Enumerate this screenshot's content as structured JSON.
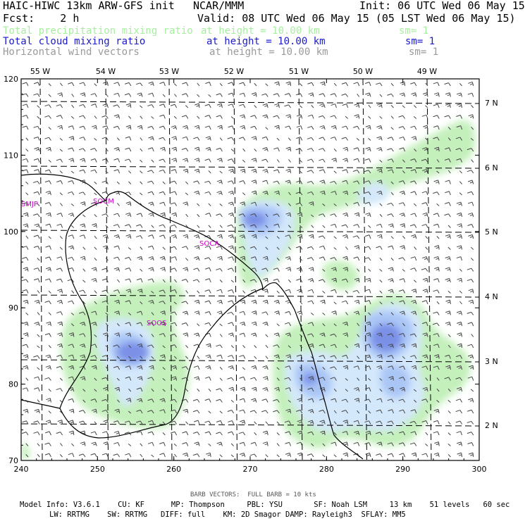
{
  "header": {
    "title": "HAIC-HIWC 13km ARW-GFS init",
    "center": "NCAR/MMM",
    "init": "Init: 06 UTC Wed 06 May 15",
    "fcst": "Fcst:    2 h",
    "valid": "Valid: 08 UTC Wed 06 May 15 (05 LST Wed 06 May 15)"
  },
  "fields": [
    {
      "name": "Total precipitation mixing ratio",
      "height": "at height = 10.00 km",
      "sm": "sm= 1",
      "color": "#a8eea0"
    },
    {
      "name": "Total cloud mixing ratio",
      "height": "at height = 10.00 km",
      "sm": "sm= 1",
      "color": "#1a1acc"
    },
    {
      "name": "Horizontal wind vectors",
      "height": "at height = 10.00 km",
      "sm": "sm= 1",
      "color": "#9a9a9a"
    }
  ],
  "axes": {
    "x_ticks": [
      "240",
      "250",
      "260",
      "270",
      "280",
      "290",
      "300"
    ],
    "y_ticks": [
      "70",
      "80",
      "90",
      "100",
      "110",
      "120"
    ],
    "lon_labels": [
      "55 W",
      "54 W",
      "53 W",
      "52 W",
      "51 W",
      "50 W",
      "49 W"
    ],
    "lat_labels": [
      "7 N",
      "6 N",
      "5 N",
      "4 N",
      "3 N",
      "2 N"
    ]
  },
  "stations": [
    "SMJP",
    "SOCM",
    "SOCA",
    "SOOS"
  ],
  "colors": {
    "precip": "#c4f0bc",
    "cloud_light": "#d4e8fb",
    "cloud_mid": "#aac6f6",
    "cloud_dark": "#7a90e6",
    "station": "#cc00cc",
    "coast": "#000000",
    "barb": "#444444"
  },
  "footer": {
    "barb": "BARB VECTORS:  FULL BARB = 10 kts",
    "line1": "Model Info: V3.6.1    CU: KF      MP: Thompson     PBL: YSU       SF: Noah LSM     13 km    51 levels   60 sec",
    "line2": "LW: RRTMG    SW: RRTMG   DIFF: full    KM: 2D Smagor DAMP: Rayleigh3  SFLAY: MM5"
  }
}
